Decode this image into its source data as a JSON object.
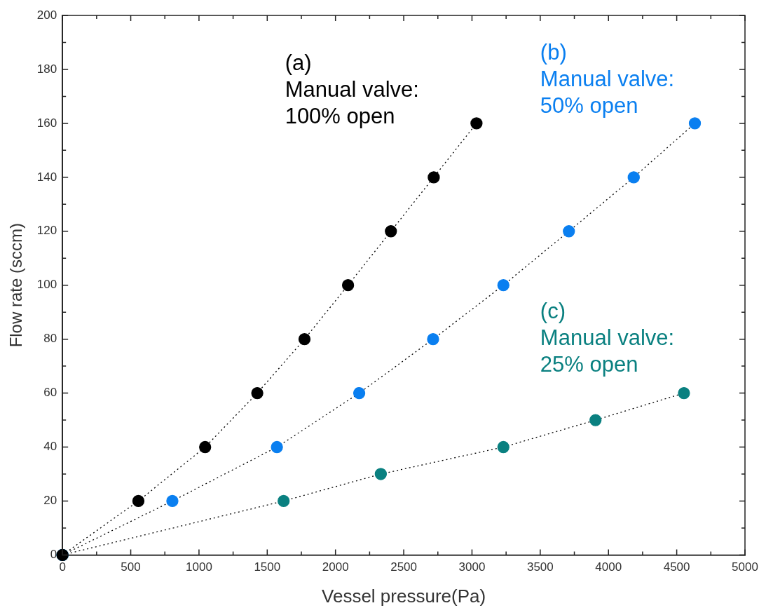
{
  "chart_data": {
    "type": "line",
    "xlabel": "Vessel pressure(Pa)",
    "ylabel": "Flow rate (sccm)",
    "xlim": [
      0,
      5000
    ],
    "ylim": [
      0,
      200
    ],
    "xticks": [
      0,
      500,
      1000,
      1500,
      2000,
      2500,
      3000,
      3500,
      4000,
      4500,
      5000
    ],
    "yticks": [
      0,
      20,
      40,
      60,
      80,
      100,
      120,
      140,
      160,
      180,
      200
    ],
    "grid": false,
    "legend": false,
    "marker": "circle",
    "line_style": "dotted",
    "series": [
      {
        "name": "(a)\nManual valve:\n100% open",
        "color": "#000000",
        "colors": [
          "#000000",
          "#000000",
          "#000000",
          "#000000",
          "#000000",
          "#000000",
          "#000000",
          "#000000",
          "#000000"
        ],
        "x": [
          0,
          556,
          1045,
          1427,
          1773,
          2092,
          2406,
          2720,
          3033
        ],
        "values": [
          0,
          20,
          40,
          60,
          80,
          100,
          120,
          140,
          160
        ]
      },
      {
        "name": "(b)\nManual valve:\n50% open",
        "color": "#000000",
        "colors": [
          "#0a7ff0",
          "#0a7ff0",
          "#0a7ff0",
          "#0a7ff0",
          "#0a7ff0",
          "#0a7ff0",
          "#0a7ff0",
          "#0a7ff0",
          "#0a7ff0"
        ],
        "x": [
          0,
          805,
          1571,
          2174,
          2715,
          3230,
          3710,
          4185,
          4633
        ],
        "values": [
          0,
          20,
          40,
          60,
          80,
          100,
          120,
          140,
          160
        ]
      },
      {
        "name": "(c)\nManual valve:\n25% open",
        "color": "#000000",
        "colors": [
          "#0a8080",
          "#0a8080",
          "#0a8080",
          "#0a8080",
          "#0a8080",
          "#0a8080"
        ],
        "x": [
          0,
          1620,
          2332,
          3230,
          3905,
          4553
        ],
        "values": [
          0,
          20,
          30,
          40,
          50,
          60
        ]
      }
    ]
  }
}
